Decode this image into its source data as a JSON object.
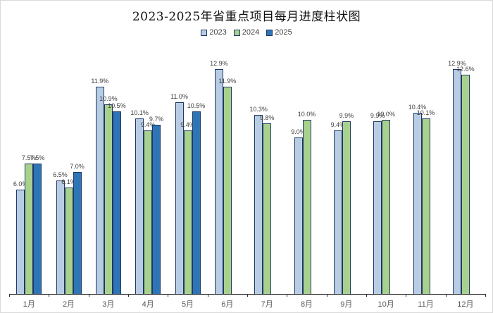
{
  "title": "2023-2025年省重点项目每月进度柱状图",
  "legend": {
    "items": [
      {
        "label": "2023",
        "color": "#b8cce4"
      },
      {
        "label": "2024",
        "color": "#a9d18e"
      },
      {
        "label": "2025",
        "color": "#2e75b6"
      }
    ]
  },
  "chart_data": {
    "type": "bar",
    "title": "2023-2025年省重点项目每月进度柱状图",
    "categories": [
      "1月",
      "2月",
      "3月",
      "4月",
      "5月",
      "6月",
      "7月",
      "8月",
      "9月",
      "10月",
      "11月",
      "12月"
    ],
    "series": [
      {
        "name": "2023",
        "color": "#b8cce4",
        "values": [
          6.0,
          6.5,
          11.9,
          10.1,
          11.0,
          12.9,
          10.3,
          9.0,
          9.4,
          9.9,
          10.4,
          12.9
        ]
      },
      {
        "name": "2024",
        "color": "#a9d18e",
        "values": [
          7.5,
          6.1,
          10.9,
          9.4,
          9.4,
          11.9,
          9.8,
          10.0,
          9.9,
          10.0,
          10.1,
          12.6
        ]
      },
      {
        "name": "2025",
        "color": "#2e75b6",
        "values": [
          7.5,
          7.0,
          10.5,
          9.7,
          10.5,
          null,
          null,
          null,
          null,
          null,
          null,
          null
        ]
      }
    ],
    "label_format": "{value}%",
    "labels_shown": true,
    "xlabel": "",
    "ylabel": "",
    "ylim": [
      0,
      13.5
    ],
    "y_axis_shown": false,
    "grid": false,
    "legend_position": "top",
    "bar_border_color": "#1f3864",
    "axis_color": "#333333",
    "label_color": "#404040",
    "category_label_color": "#595959"
  }
}
